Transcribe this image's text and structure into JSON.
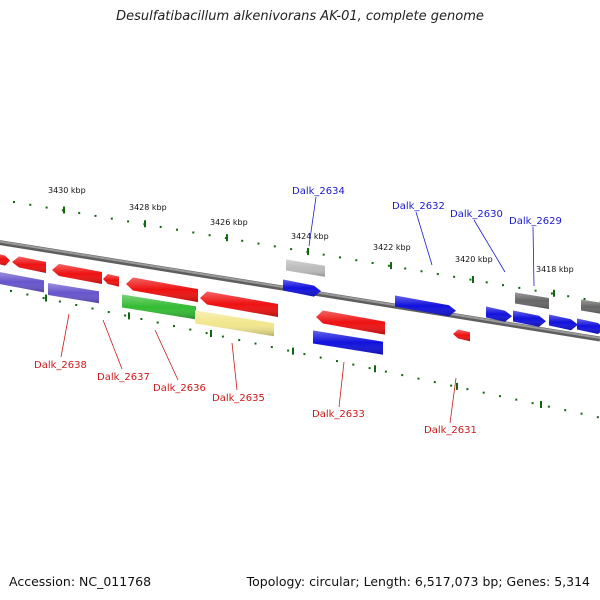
{
  "title": "Desulfatibacillum alkenivorans AK-01, complete genome",
  "footer": {
    "accession": "Accession: NC_011768",
    "topology": "Topology: circular; Length: 6,517,073 bp; Genes: 5,314"
  },
  "ruler": [
    "3430 kbp",
    "3428 kbp",
    "3426 kbp",
    "3424 kbp",
    "3422 kbp",
    "3420 kbp",
    "3418 kbp"
  ],
  "genes_top": [
    "Dalk_2634",
    "Dalk_2632",
    "Dalk_2630",
    "Dalk_2629"
  ],
  "genes_bottom": [
    "Dalk_2638",
    "Dalk_2637",
    "Dalk_2636",
    "Dalk_2635",
    "Dalk_2633",
    "Dalk_2631"
  ],
  "colors": {
    "red": "#ee1111",
    "blue": "#1111dd",
    "purple": "#6655cc",
    "green": "#33bb33",
    "yellow": "#f2e68c",
    "grey": "#666666",
    "lightgrey": "#bbbbbb",
    "backbone": "#888888",
    "tick": "#116611",
    "top_label": "#1a1acc",
    "bottom_label": "#cc1a1a"
  }
}
